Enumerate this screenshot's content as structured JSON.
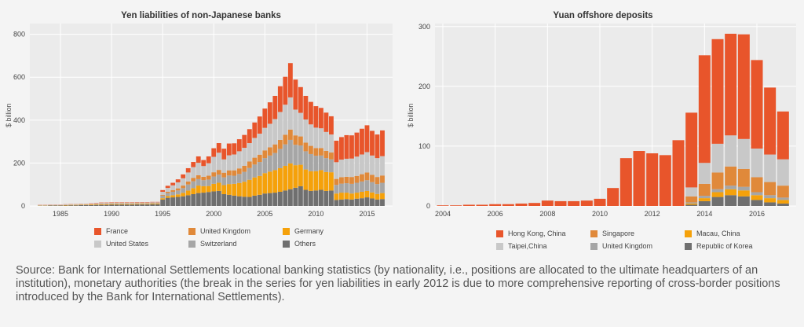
{
  "source_text": "Source: Bank for International Settlements locational banking statistics (by nationality, i.e., positions are allocated to the ultimate headquarters of an institution), monetary authorities (the break in the series for yen liabilities in early 2012 is due to more comprehensive reporting of cross-border positions introduced by the Bank for International Settlements).",
  "chart_data": [
    {
      "type": "stacked-bar",
      "title": "Yen liabilities of non-Japanese banks",
      "ylabel": "$ billion",
      "xlabel": "",
      "xlim": [
        1982,
        2017.5
      ],
      "ylim": [
        0,
        850
      ],
      "xticks": [
        "1985",
        "1990",
        "1995",
        "2000",
        "2005",
        "2010",
        "2015"
      ],
      "yticks": [
        "0",
        "200",
        "400",
        "600",
        "800"
      ],
      "grid": true,
      "legend_position": "bottom",
      "x": [
        1983.0,
        1983.5,
        1984.0,
        1984.5,
        1985.0,
        1985.5,
        1986.0,
        1986.5,
        1987.0,
        1987.5,
        1988.0,
        1988.5,
        1989.0,
        1989.5,
        1990.0,
        1990.5,
        1991.0,
        1991.5,
        1992.0,
        1992.5,
        1993.0,
        1993.5,
        1994.0,
        1994.5,
        1995.0,
        1995.5,
        1996.0,
        1996.5,
        1997.0,
        1997.5,
        1998.0,
        1998.5,
        1999.0,
        1999.5,
        2000.0,
        2000.5,
        2001.0,
        2001.5,
        2002.0,
        2002.5,
        2003.0,
        2003.5,
        2004.0,
        2004.5,
        2005.0,
        2005.5,
        2006.0,
        2006.5,
        2007.0,
        2007.5,
        2008.0,
        2008.5,
        2009.0,
        2009.5,
        2010.0,
        2010.5,
        2011.0,
        2011.5,
        2012.0,
        2012.5,
        2013.0,
        2013.5,
        2014.0,
        2014.5,
        2015.0,
        2015.5,
        2016.0,
        2016.5
      ],
      "series": [
        {
          "name": "Others",
          "color": "#6f6f6f",
          "values": [
            1,
            1,
            2,
            2,
            2,
            2,
            3,
            3,
            4,
            4,
            4,
            5,
            5,
            5,
            6,
            6,
            6,
            6,
            6,
            7,
            7,
            7,
            8,
            8,
            30,
            38,
            40,
            42,
            45,
            50,
            55,
            60,
            62,
            65,
            68,
            70,
            55,
            52,
            48,
            45,
            43,
            42,
            48,
            52,
            58,
            60,
            62,
            66,
            72,
            78,
            85,
            92,
            75,
            70,
            72,
            75,
            70,
            72,
            28,
            30,
            32,
            30,
            34,
            36,
            40,
            35,
            30,
            32
          ]
        },
        {
          "name": "Germany",
          "color": "#f5a10a",
          "values": [
            1,
            1,
            1,
            1,
            1,
            2,
            2,
            2,
            2,
            2,
            3,
            3,
            3,
            3,
            3,
            3,
            3,
            3,
            3,
            3,
            3,
            3,
            3,
            3,
            6,
            8,
            10,
            12,
            16,
            22,
            28,
            35,
            30,
            28,
            35,
            38,
            42,
            50,
            55,
            62,
            70,
            80,
            85,
            88,
            95,
            100,
            105,
            110,
            115,
            120,
            105,
            100,
            95,
            92,
            90,
            92,
            88,
            85,
            30,
            32,
            30,
            28,
            28,
            30,
            30,
            28,
            26,
            28
          ]
        },
        {
          "name": "Switzerland",
          "color": "#a6a6a6",
          "values": [
            1,
            1,
            1,
            1,
            1,
            1,
            1,
            1,
            1,
            1,
            1,
            1,
            2,
            2,
            2,
            2,
            2,
            2,
            2,
            2,
            2,
            2,
            2,
            2,
            12,
            14,
            16,
            18,
            22,
            28,
            32,
            30,
            28,
            30,
            34,
            38,
            36,
            40,
            38,
            42,
            46,
            55,
            60,
            65,
            70,
            75,
            80,
            90,
            100,
            110,
            95,
            90,
            85,
            80,
            72,
            68,
            65,
            60,
            40,
            42,
            44,
            45,
            46,
            48,
            50,
            48,
            46,
            48
          ]
        },
        {
          "name": "United Kingdom",
          "color": "#e0893a",
          "values": [
            0,
            0,
            0,
            0,
            0,
            0,
            0,
            0,
            0,
            0,
            0,
            0,
            1,
            1,
            1,
            1,
            1,
            1,
            1,
            1,
            1,
            1,
            1,
            1,
            4,
            6,
            8,
            10,
            12,
            14,
            16,
            18,
            16,
            18,
            20,
            22,
            22,
            24,
            25,
            26,
            28,
            30,
            32,
            34,
            36,
            38,
            40,
            42,
            45,
            48,
            44,
            42,
            40,
            38,
            36,
            35,
            34,
            32,
            28,
            30,
            30,
            32,
            32,
            34,
            36,
            34,
            33,
            34
          ]
        },
        {
          "name": "United States",
          "color": "#c8c8c8",
          "values": [
            1,
            1,
            1,
            1,
            1,
            2,
            2,
            2,
            2,
            2,
            2,
            2,
            3,
            3,
            3,
            3,
            3,
            3,
            3,
            3,
            3,
            3,
            3,
            3,
            14,
            18,
            22,
            28,
            34,
            42,
            50,
            58,
            50,
            58,
            72,
            80,
            62,
            70,
            74,
            80,
            84,
            86,
            92,
            98,
            105,
            110,
            118,
            130,
            140,
            150,
            120,
            110,
            108,
            100,
            95,
            92,
            88,
            84,
            78,
            82,
            84,
            86,
            90,
            92,
            95,
            90,
            88,
            90
          ]
        },
        {
          "name": "France",
          "color": "#e8552b",
          "values": [
            1,
            1,
            1,
            1,
            1,
            1,
            1,
            1,
            1,
            1,
            2,
            2,
            2,
            2,
            2,
            2,
            2,
            2,
            2,
            2,
            2,
            2,
            2,
            2,
            8,
            10,
            12,
            14,
            18,
            20,
            24,
            30,
            28,
            32,
            40,
            45,
            50,
            55,
            52,
            56,
            60,
            65,
            72,
            80,
            90,
            100,
            108,
            120,
            130,
            160,
            140,
            120,
            110,
            105,
            100,
            95,
            90,
            85,
            100,
            105,
            110,
            108,
            112,
            120,
            125,
            115,
            110,
            120
          ]
        }
      ]
    },
    {
      "type": "stacked-bar",
      "title": "Yuan offshore deposits",
      "ylabel": "$ billion",
      "xlabel": "",
      "xlim": [
        2003.7,
        2017.5
      ],
      "ylim": [
        0,
        305
      ],
      "xticks": [
        "2004",
        "2006",
        "2008",
        "2010",
        "2012",
        "2014",
        "2016"
      ],
      "yticks": [
        "0",
        "100",
        "200",
        "300"
      ],
      "grid": true,
      "legend_position": "bottom",
      "x": [
        2004.0,
        2004.5,
        2005.0,
        2005.5,
        2006.0,
        2006.5,
        2007.0,
        2007.5,
        2008.0,
        2008.5,
        2009.0,
        2009.5,
        2010.0,
        2010.5,
        2011.0,
        2011.5,
        2012.0,
        2012.5,
        2013.0,
        2013.5,
        2014.0,
        2014.5,
        2015.0,
        2015.5,
        2016.0,
        2016.5,
        2017.0
      ],
      "series": [
        {
          "name": "Republic of Korea",
          "color": "#6f6f6f",
          "values": [
            0,
            0,
            0,
            0,
            0,
            0,
            0,
            0,
            0,
            0,
            0,
            0,
            0,
            0,
            0,
            0,
            0,
            0,
            0,
            2,
            8,
            15,
            18,
            16,
            10,
            6,
            4
          ]
        },
        {
          "name": "Macau, China",
          "color": "#f5a10a",
          "values": [
            0,
            0,
            0,
            0,
            0,
            0,
            0,
            0,
            0,
            0,
            0,
            0,
            0,
            0,
            0,
            0,
            0,
            0,
            0,
            2,
            5,
            8,
            10,
            10,
            8,
            7,
            6
          ]
        },
        {
          "name": "United Kingdom",
          "color": "#a6a6a6",
          "values": [
            0,
            0,
            0,
            0,
            0,
            0,
            0,
            0,
            0,
            0,
            0,
            0,
            0,
            0,
            0,
            0,
            0,
            0,
            0,
            2,
            4,
            5,
            6,
            6,
            5,
            5,
            4
          ]
        },
        {
          "name": "Singapore",
          "color": "#e0893a",
          "values": [
            0,
            0,
            0,
            0,
            0,
            0,
            0,
            0,
            0,
            0,
            0,
            0,
            0,
            0,
            0,
            0,
            0,
            0,
            0,
            10,
            20,
            28,
            32,
            30,
            25,
            22,
            20
          ]
        },
        {
          "name": "Taipei,China",
          "color": "#c8c8c8",
          "values": [
            0,
            0,
            0,
            0,
            0,
            0,
            0,
            0,
            0,
            0,
            0,
            0,
            0,
            0,
            0,
            0,
            0,
            0,
            0,
            15,
            35,
            48,
            52,
            50,
            48,
            46,
            44
          ]
        },
        {
          "name": "Hong Kong, China",
          "color": "#e8552b",
          "values": [
            1,
            1,
            2,
            2,
            3,
            3,
            4,
            5,
            9,
            8,
            8,
            9,
            12,
            30,
            80,
            92,
            88,
            85,
            110,
            125,
            180,
            175,
            170,
            175,
            148,
            112,
            80
          ]
        }
      ]
    }
  ]
}
